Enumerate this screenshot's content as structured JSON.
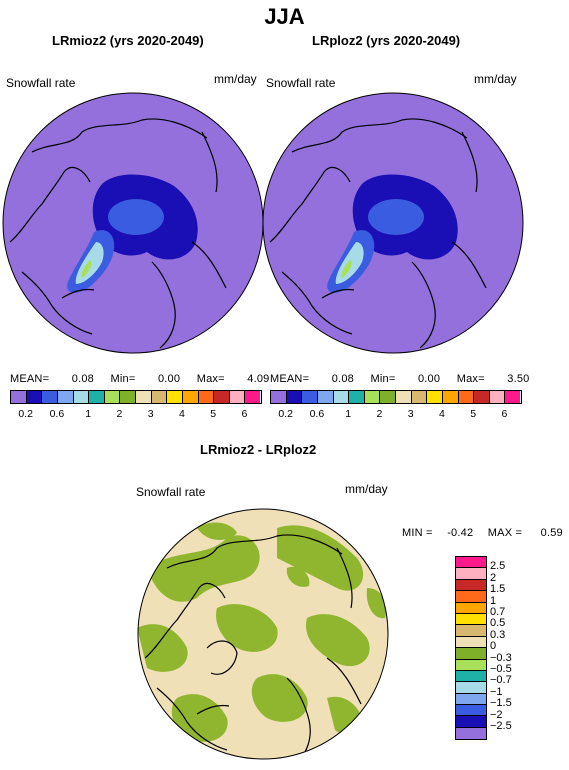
{
  "title": "JJA",
  "panel_left": {
    "title": "LRmioz2 (yrs 2020-2049)",
    "field_label": "Snowfall rate",
    "units": "mm/day",
    "stats": {
      "mean_label": "MEAN=",
      "mean": "0.08",
      "min_label": "Min=",
      "min": "0.00",
      "max_label": "Max=",
      "max": "4.09"
    }
  },
  "panel_right": {
    "title": "LRploz2 (yrs 2020-2049)",
    "field_label": "Snowfall rate",
    "units": "mm/day",
    "stats": {
      "mean_label": "MEAN=",
      "mean": "0.08",
      "min_label": "Min=",
      "min": "0.00",
      "max_label": "Max=",
      "max": "3.50"
    }
  },
  "abs_colorbar": {
    "colors": [
      "#9370db",
      "#1a0fb4",
      "#3a5ce0",
      "#7ea7f0",
      "#a8dbe8",
      "#1fb0a8",
      "#a8e05a",
      "#7fb02a",
      "#f0e0b8",
      "#d8b870",
      "#ffe000",
      "#ffa500",
      "#ff6a1a",
      "#c62828",
      "#ffb0c0",
      "#ff1a8c"
    ],
    "tick_labels": [
      "0.2",
      "0.6",
      "1",
      "2",
      "3",
      "4",
      "5",
      "6"
    ]
  },
  "diff_panel": {
    "title": "LRmioz2 - LRploz2",
    "field_label": "Snowfall rate",
    "units": "mm/day",
    "stats": {
      "min_label": "MIN =",
      "min": "-0.42",
      "max_label": "MAX =",
      "max": "0.59"
    }
  },
  "diff_colorbar": {
    "colors": [
      "#ff1a8c",
      "#ffb0c0",
      "#c62828",
      "#ff6a1a",
      "#ffa500",
      "#ffe000",
      "#d8b870",
      "#f0e0b8",
      "#7fb02a",
      "#a8e05a",
      "#1fb0a8",
      "#a8dbe8",
      "#7ea7f0",
      "#3a5ce0",
      "#1a0fb4",
      "#9370db"
    ],
    "labels": [
      "2.5",
      "2",
      "1.5",
      "1",
      "0.7",
      "0.5",
      "0.3",
      "0",
      "−0.3",
      "−0.5",
      "−0.7",
      "−1",
      "−1.5",
      "−2",
      "−2.5"
    ]
  }
}
